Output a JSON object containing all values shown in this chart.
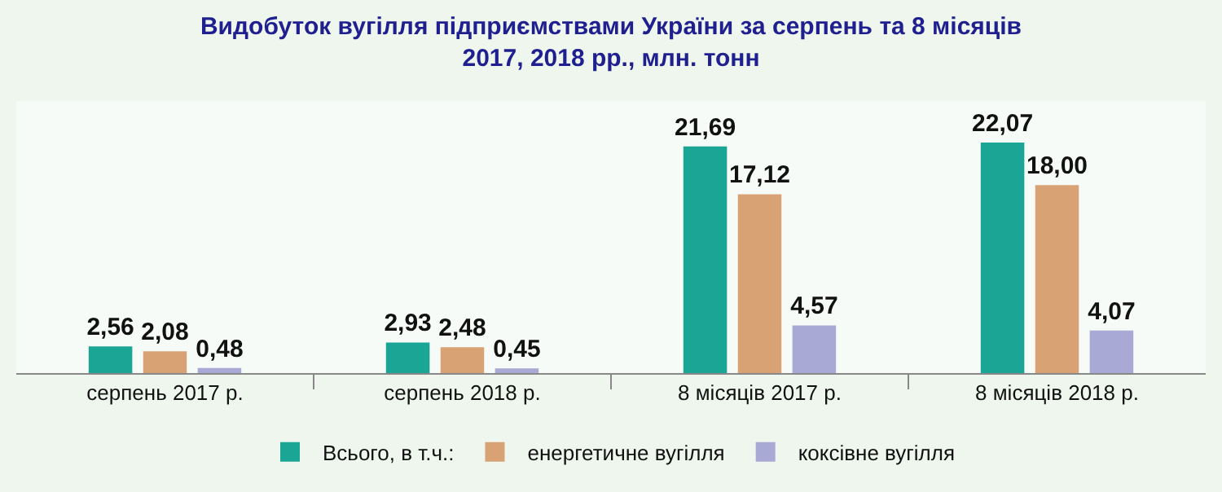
{
  "chart_data": {
    "type": "bar",
    "title": "Видобуток вугілля підприємствами України за серпень та 8 місяців\n2017, 2018 рр., млн. тонн",
    "categories": [
      "серпень 2017 р.",
      "серпень 2018 р.",
      "8 місяців 2017 р.",
      "8 місяців 2018 р."
    ],
    "series": [
      {
        "name": "Всього, в т.ч.:",
        "color": "#1aa595",
        "values": [
          2.56,
          2.93,
          21.69,
          22.07
        ],
        "value_labels": [
          "2,56",
          "2,93",
          "21,69",
          "22,07"
        ]
      },
      {
        "name": "енергетичне вугілля",
        "color": "#d8a275",
        "values": [
          2.08,
          2.48,
          17.12,
          18.0
        ],
        "value_labels": [
          "2,08",
          "2,48",
          "17,12",
          "18,00"
        ]
      },
      {
        "name": "коксівне вугілля",
        "color": "#a9a9d6",
        "values": [
          0.48,
          0.45,
          4.57,
          4.07
        ],
        "value_labels": [
          "0,48",
          "0,45",
          "4,57",
          "4,07"
        ]
      }
    ],
    "legend": "bottom"
  }
}
